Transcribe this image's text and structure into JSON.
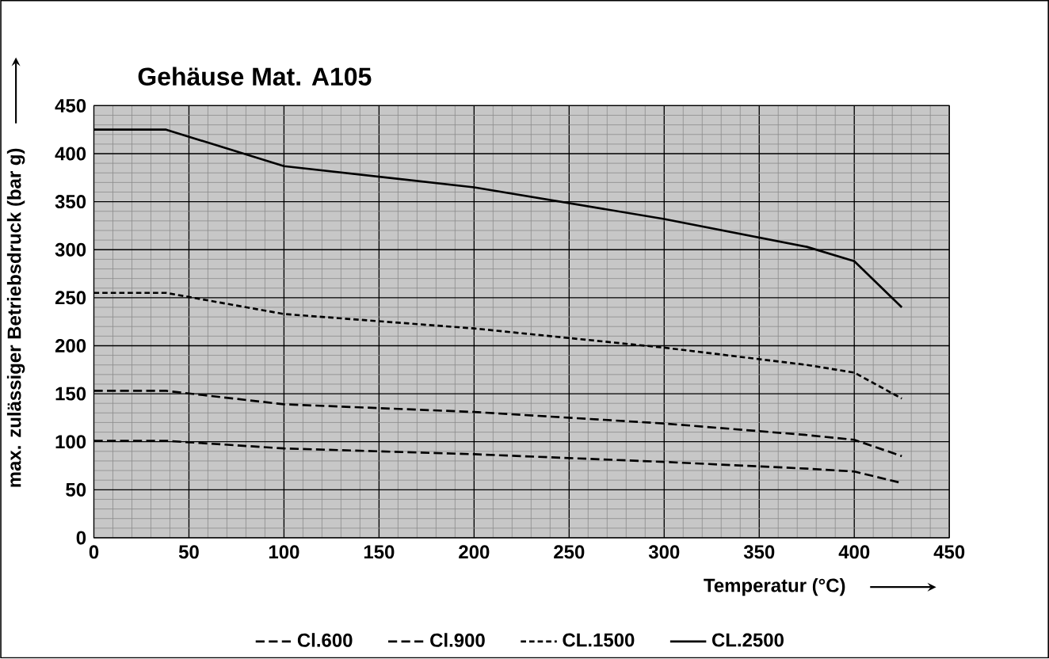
{
  "chart_data": {
    "type": "line",
    "title": "Gehäuse Mat. A105",
    "xlabel": "Temperatur (°C)",
    "ylabel": "max. zulässiger Betriebsdruck (bar g)",
    "xlim": [
      0,
      450
    ],
    "ylim": [
      0,
      450
    ],
    "xticks": [
      0,
      50,
      100,
      150,
      200,
      250,
      300,
      350,
      400,
      450
    ],
    "yticks": [
      0,
      50,
      100,
      150,
      200,
      250,
      300,
      350,
      400,
      450
    ],
    "grid": true,
    "legend": "bottom",
    "marker": "none",
    "series": [
      {
        "name": "Cl.600",
        "color": "#000000",
        "line_style": "dashed",
        "x": [
          0,
          38,
          100,
          200,
          300,
          375,
          400,
          425
        ],
        "values": [
          101,
          101,
          93,
          87,
          79,
          72,
          69,
          57
        ]
      },
      {
        "name": "Cl.900",
        "color": "#000000",
        "line_style": "dashed",
        "x": [
          0,
          38,
          100,
          200,
          300,
          375,
          400,
          425
        ],
        "values": [
          153,
          153,
          139,
          131,
          119,
          107,
          102,
          85
        ]
      },
      {
        "name": "CL.1500",
        "color": "#000000",
        "line_style": "dotted",
        "x": [
          0,
          38,
          100,
          200,
          300,
          375,
          400,
          425
        ],
        "values": [
          255,
          255,
          233,
          218,
          198,
          180,
          172,
          145
        ]
      },
      {
        "name": "CL.2500",
        "color": "#000000",
        "line_style": "solid",
        "x": [
          0,
          38,
          100,
          200,
          300,
          375,
          400,
          425
        ],
        "values": [
          425,
          425,
          387,
          365,
          332,
          303,
          288,
          240
        ]
      }
    ]
  }
}
